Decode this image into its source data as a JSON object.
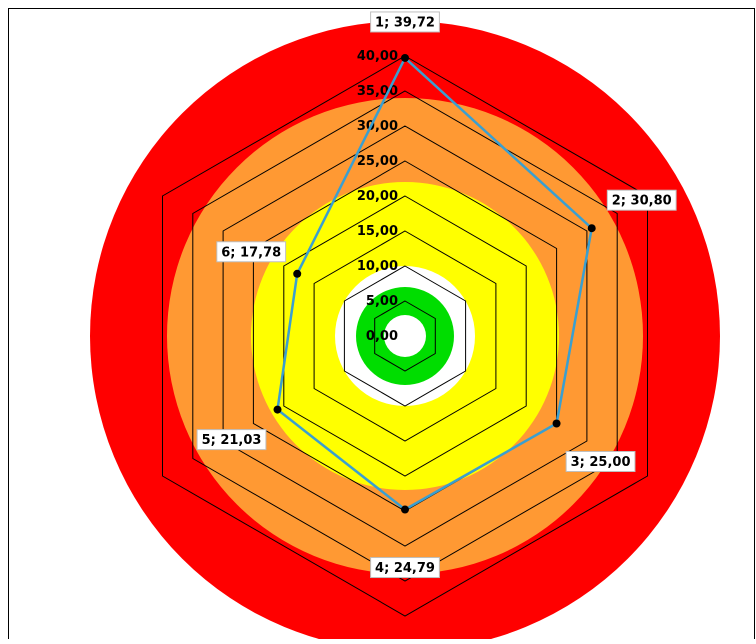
{
  "chart_data": {
    "type": "radar",
    "title": "",
    "categories": [
      "1",
      "2",
      "3",
      "4",
      "5",
      "6"
    ],
    "series": [
      {
        "color": "#3A9FD0",
        "values": [
          39.72,
          30.8,
          25.0,
          24.79,
          21.03,
          17.78
        ]
      }
    ],
    "data_labels": [
      "1; 39,72",
      "2; 30,80",
      "3; 25,00",
      "4; 24,79",
      "5; 21,03",
      "6; 17,78"
    ],
    "axis": {
      "min": 0,
      "max": 40,
      "ticks": [
        0,
        5,
        10,
        15,
        20,
        25,
        30,
        35,
        40
      ],
      "tick_labels": [
        "0,00",
        "5,00",
        "10,00",
        "15,00",
        "20,00",
        "25,00",
        "30,00",
        "35,00",
        "40,00"
      ]
    },
    "background_zones": [
      {
        "color": "#FF0000",
        "outer_value": 45
      },
      {
        "color": "#FF9933",
        "outer_value": 34
      },
      {
        "color": "#FFFF00",
        "outer_value": 22
      },
      {
        "color": "#FFFFFF",
        "outer_value": 10
      },
      {
        "color": "#00DD00",
        "outer_value": 7
      },
      {
        "color": "#FFFFFF",
        "outer_value": 3
      }
    ],
    "grid": true,
    "legend": "none"
  }
}
